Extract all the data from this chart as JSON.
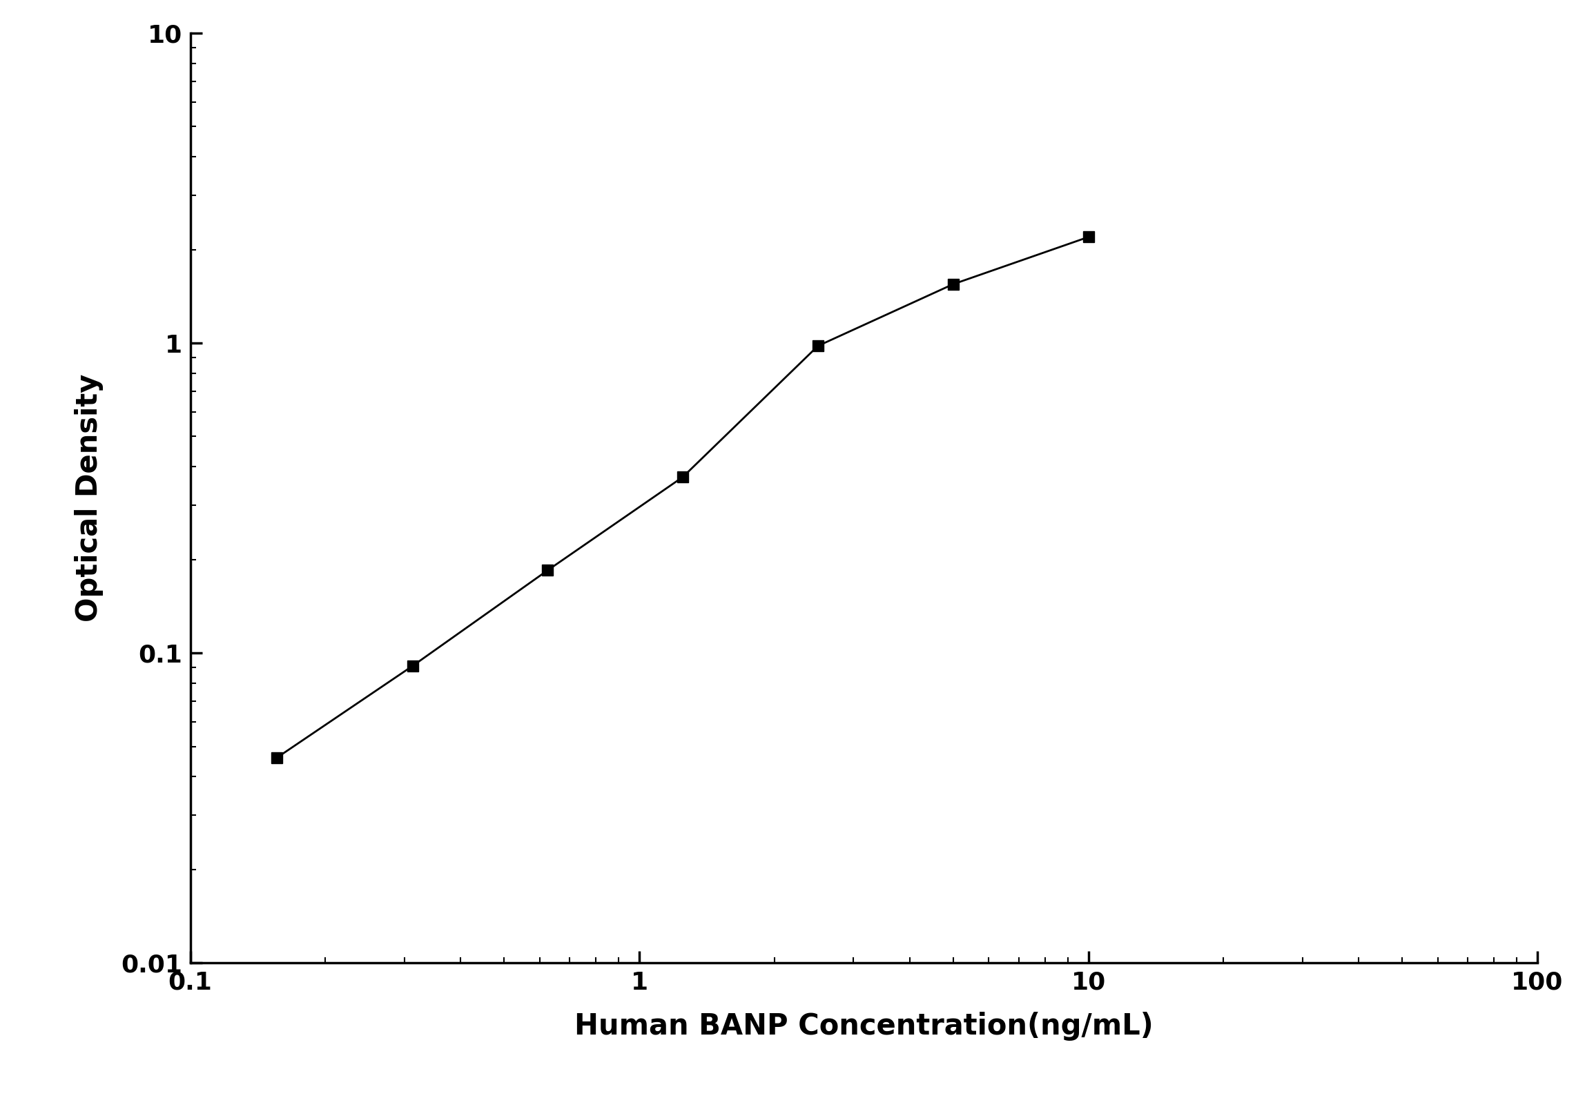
{
  "x": [
    0.156,
    0.313,
    0.625,
    1.25,
    2.5,
    5.0,
    10.0
  ],
  "y": [
    0.046,
    0.091,
    0.185,
    0.37,
    0.98,
    1.55,
    2.2
  ],
  "xlim": [
    0.1,
    100
  ],
  "ylim": [
    0.01,
    10
  ],
  "xlabel": "Human BANP Concentration(ng/mL)",
  "ylabel": "Optical Density",
  "line_color": "#000000",
  "marker": "s",
  "marker_color": "#000000",
  "marker_size": 12,
  "linewidth": 2.0,
  "background_color": "#ffffff",
  "xlabel_fontsize": 30,
  "ylabel_fontsize": 30,
  "tick_fontsize": 26,
  "spine_linewidth": 2.5
}
